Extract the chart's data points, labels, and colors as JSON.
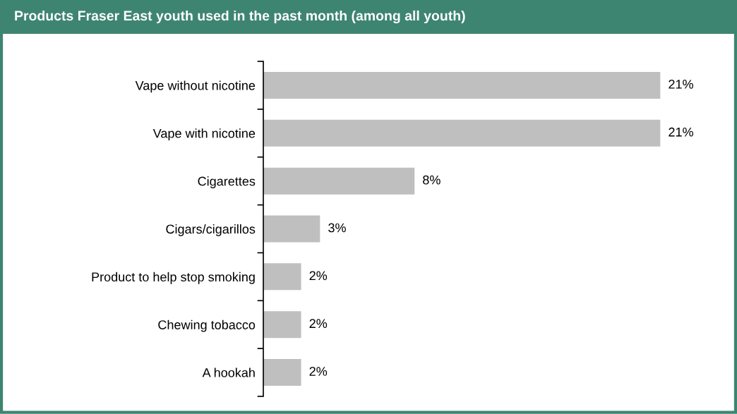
{
  "chart_data": {
    "type": "bar",
    "orientation": "horizontal",
    "title": "Products Fraser East youth used in the past month (among all youth)",
    "categories": [
      "Vape without nicotine",
      "Vape with nicotine",
      "Cigarettes",
      "Cigars/cigarillos",
      "Product to help stop smoking",
      "Chewing tobacco",
      "A hookah"
    ],
    "values": [
      21,
      21,
      8,
      3,
      2,
      2,
      2
    ],
    "value_labels": [
      "21%",
      "21%",
      "8%",
      "3%",
      "2%",
      "2%",
      "2%"
    ],
    "color": "#bfbfbf",
    "grid": false,
    "legend": false,
    "tick_labels": "y"
  }
}
